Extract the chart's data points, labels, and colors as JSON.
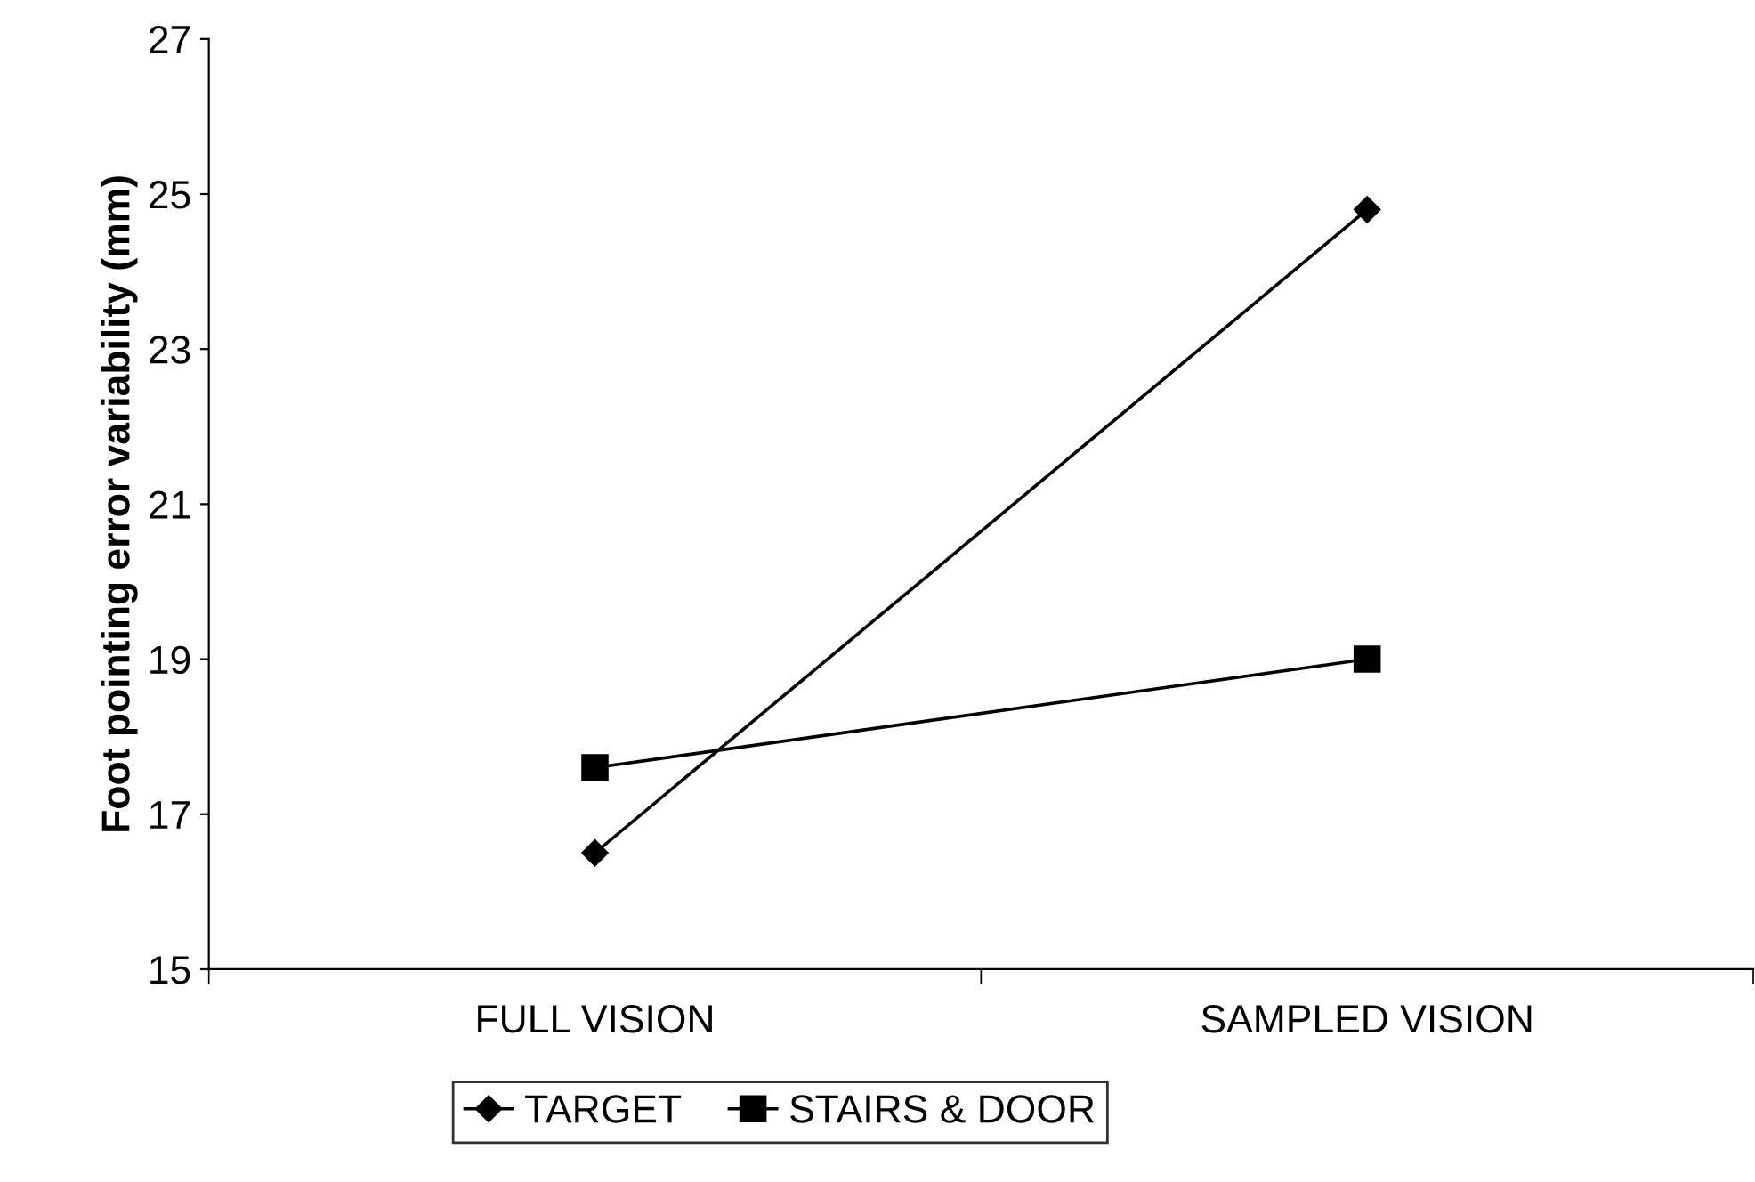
{
  "chart_data": {
    "type": "line",
    "ylabel": "Foot pointing error variability (mm)",
    "categories": [
      "FULL VISION",
      "SAMPLED VISION"
    ],
    "series": [
      {
        "name": "TARGET",
        "color": "#000000",
        "marker": "diamond",
        "values": [
          16.5,
          24.8
        ]
      },
      {
        "name": "STAIRS & DOOR",
        "color": "#000000",
        "marker": "square",
        "values": [
          17.6,
          19.0
        ]
      }
    ],
    "ylim": [
      15,
      27
    ],
    "yticks": [
      15,
      17,
      19,
      21,
      23,
      25,
      27
    ],
    "grid": false,
    "legend": "bottom",
    "line_style": "solid"
  }
}
